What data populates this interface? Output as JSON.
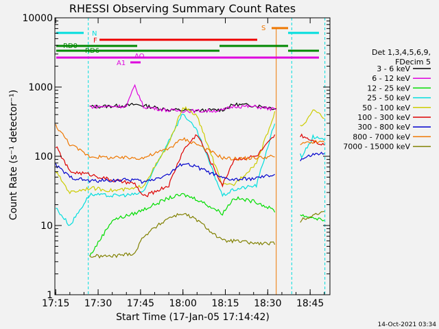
{
  "chart_data": {
    "type": "line",
    "title": "RHESSI Observing Summary Count Rates",
    "xlabel": "Start Time (17-Jan-05 17:14:42)",
    "ylabel": "Count Rate (s⁻¹ detector⁻¹)",
    "y_scale": "log",
    "ylim": [
      1,
      10000
    ],
    "xlim": [
      "17:15",
      "18:52"
    ],
    "x_ticks": [
      "17:15",
      "17:30",
      "17:45",
      "18:00",
      "18:15",
      "18:30",
      "18:45"
    ],
    "y_ticks": [
      "1",
      "10",
      "100",
      "1000",
      "10000"
    ],
    "legend_title": [
      "Det 1,3,4,5,6,9,",
      "FDecim 5"
    ],
    "legend_position": "right",
    "timestamp": "14-Oct-2021 03:34",
    "flag_labels": [
      "N",
      "F",
      "S",
      "RD0",
      "RD6",
      "AO",
      "A1"
    ],
    "series": [
      {
        "name": "3 - 6 keV",
        "color": "#000000",
        "x": [
          "17:27",
          "17:40",
          "17:43",
          "17:46",
          "17:55",
          "18:05",
          "18:14",
          "18:18",
          "18:26",
          "18:33"
        ],
        "values": [
          520,
          540,
          560,
          540,
          470,
          455,
          470,
          560,
          540,
          490
        ]
      },
      {
        "name": "6 - 12 keV",
        "color": "#dd00dd",
        "x": [
          "17:27",
          "17:40",
          "17:43",
          "17:46",
          "17:55",
          "18:05",
          "18:14",
          "18:18",
          "18:26",
          "18:33"
        ],
        "values": [
          520,
          530,
          1050,
          520,
          460,
          450,
          460,
          530,
          520,
          470
        ]
      },
      {
        "name": "12 - 25 keV",
        "color": "#00dd00",
        "x": [
          "17:27",
          "17:35",
          "17:43",
          "17:46",
          "17:55",
          "18:00",
          "18:05",
          "18:14",
          "18:18",
          "18:26",
          "18:33",
          "18:42",
          "18:46",
          "18:50"
        ],
        "values": [
          3.6,
          12,
          15,
          17,
          25,
          28,
          24,
          15,
          25,
          22,
          16,
          14,
          13,
          12
        ]
      },
      {
        "name": "25 - 50 keV",
        "color": "#00dddd",
        "x": [
          "17:15",
          "17:20",
          "17:27",
          "17:35",
          "17:43",
          "17:46",
          "17:55",
          "18:00",
          "18:05",
          "18:14",
          "18:18",
          "18:26",
          "18:33",
          "18:42",
          "18:46",
          "18:50"
        ],
        "values": [
          18,
          10,
          28,
          27,
          28,
          31,
          170,
          420,
          230,
          27,
          33,
          38,
          360,
          100,
          190,
          170
        ]
      },
      {
        "name": "50 - 100 keV",
        "color": "#cccc00",
        "x": [
          "17:15",
          "17:20",
          "17:27",
          "17:35",
          "17:43",
          "17:46",
          "17:55",
          "18:00",
          "18:05",
          "18:14",
          "18:18",
          "18:26",
          "18:33",
          "18:42",
          "18:46",
          "18:50"
        ],
        "values": [
          60,
          30,
          35,
          32,
          34,
          38,
          150,
          520,
          380,
          38,
          39,
          80,
          480,
          260,
          480,
          350
        ]
      },
      {
        "name": "100 - 300 keV",
        "color": "#dd0000",
        "x": [
          "17:15",
          "17:20",
          "17:27",
          "17:35",
          "17:43",
          "17:46",
          "17:55",
          "18:00",
          "18:05",
          "18:14",
          "18:18",
          "18:26",
          "18:33",
          "18:42",
          "18:46",
          "18:50"
        ],
        "values": [
          140,
          60,
          55,
          45,
          40,
          26,
          38,
          120,
          210,
          38,
          90,
          100,
          210,
          200,
          170,
          145
        ]
      },
      {
        "name": "300 - 800 keV",
        "color": "#0000cc",
        "x": [
          "17:15",
          "17:20",
          "17:27",
          "17:35",
          "17:43",
          "17:46",
          "17:55",
          "18:00",
          "18:05",
          "18:14",
          "18:18",
          "18:26",
          "18:33",
          "18:42",
          "18:46",
          "18:50"
        ],
        "values": [
          75,
          50,
          44,
          45,
          46,
          42,
          55,
          80,
          70,
          48,
          46,
          48,
          55,
          90,
          105,
          110
        ]
      },
      {
        "name": "800 - 7000 keV",
        "color": "#ee7700",
        "x": [
          "17:15",
          "17:20",
          "17:27",
          "17:35",
          "17:43",
          "17:46",
          "17:55",
          "18:00",
          "18:05",
          "18:14",
          "18:18",
          "18:26",
          "18:33",
          "18:42",
          "18:46",
          "18:50"
        ],
        "values": [
          280,
          150,
          100,
          95,
          95,
          95,
          130,
          180,
          150,
          95,
          92,
          95,
          100,
          150,
          160,
          160
        ]
      },
      {
        "name": "7000 - 15000 keV",
        "color": "#808000",
        "x": [
          "17:27",
          "17:35",
          "17:43",
          "17:46",
          "17:55",
          "18:00",
          "18:05",
          "18:14",
          "18:18",
          "18:26",
          "18:33",
          "18:42",
          "18:46",
          "18:50"
        ],
        "values": [
          3.6,
          3.6,
          4,
          7,
          13,
          15,
          12,
          6,
          6,
          5.5,
          5.5,
          12,
          14,
          16
        ]
      }
    ]
  }
}
